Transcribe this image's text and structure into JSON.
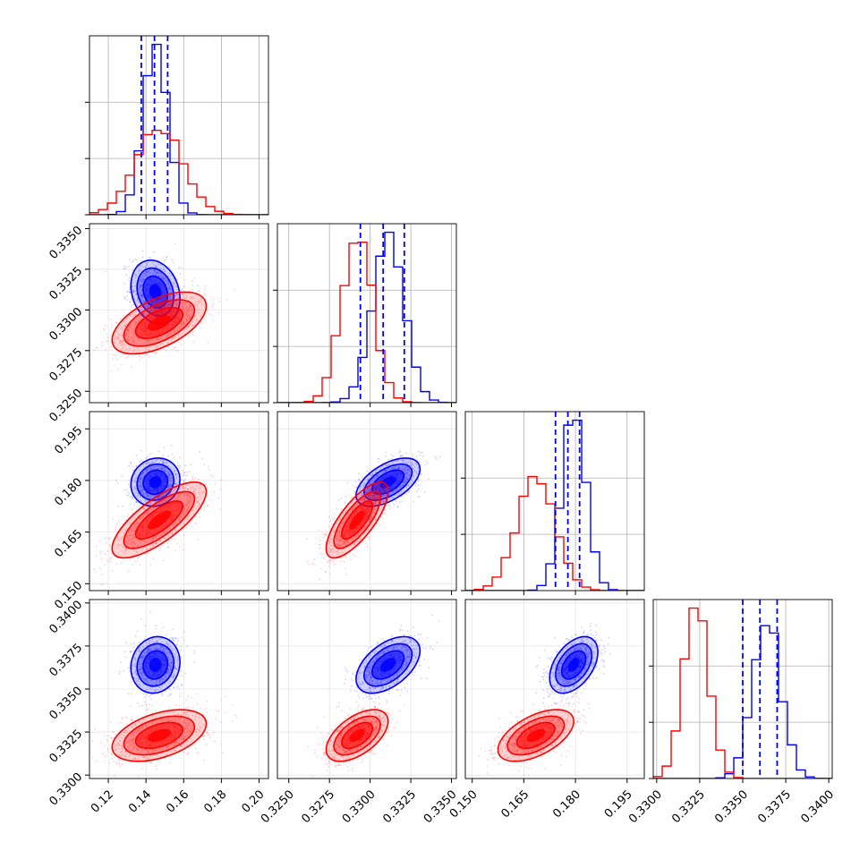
{
  "chart_data": {
    "type": "corner",
    "title": "",
    "parameters": [
      {
        "index": 0,
        "xlim": [
          0.11,
          0.205
        ],
        "ticks": [
          0.12,
          0.14,
          0.16,
          0.18,
          0.2
        ],
        "tick_labels": [
          "0.12",
          "0.14",
          "0.16",
          "0.18",
          "0.20"
        ]
      },
      {
        "index": 1,
        "xlim": [
          0.3243,
          0.3353
        ],
        "ticks": [
          0.325,
          0.3275,
          0.33,
          0.3325,
          0.335
        ],
        "tick_labels": [
          "0.3250",
          "0.3275",
          "0.3300",
          "0.3325",
          "0.3350"
        ]
      },
      {
        "index": 2,
        "xlim": [
          0.148,
          0.2
        ],
        "ticks": [
          0.15,
          0.165,
          0.18,
          0.195
        ],
        "tick_labels": [
          "0.150",
          "0.165",
          "0.180",
          "0.195"
        ]
      },
      {
        "index": 3,
        "xlim": [
          0.3298,
          0.3402
        ],
        "ticks": [
          0.33,
          0.3325,
          0.335,
          0.3375,
          0.34
        ],
        "tick_labels": [
          "0.3300",
          "0.3325",
          "0.3350",
          "0.3375",
          "0.3400"
        ]
      }
    ],
    "grid": true,
    "series": [
      {
        "color": "#0000ff",
        "means": [
          0.145,
          0.3311,
          0.1795,
          0.3364
        ],
        "stds": [
          0.0065,
          0.00098,
          0.0035,
          0.00082
        ],
        "quantiles": [
          [
            0.1375,
            0.1445,
            0.1515
          ],
          [
            0.3294,
            0.3308,
            0.3321
          ],
          [
            0.1742,
            0.1778,
            0.1812
          ],
          [
            0.335,
            0.336,
            0.337
          ]
        ],
        "correlations": [
          [
            0,
            1,
            -0.2
          ],
          [
            0,
            2,
            0.1
          ],
          [
            0,
            3,
            0.1
          ],
          [
            1,
            2,
            0.55
          ],
          [
            1,
            3,
            0.5
          ],
          [
            2,
            3,
            0.45
          ]
        ]
      },
      {
        "color": "#ff0000",
        "means": [
          0.147,
          0.3292,
          0.1685,
          0.3323
        ],
        "stds": [
          0.0125,
          0.00095,
          0.0055,
          0.00075
        ],
        "quantiles": null,
        "correlations": [
          [
            0,
            1,
            0.55
          ],
          [
            0,
            2,
            0.75
          ],
          [
            0,
            3,
            0.45
          ],
          [
            1,
            2,
            0.75
          ],
          [
            1,
            3,
            0.55
          ],
          [
            2,
            3,
            0.55
          ]
        ]
      }
    ]
  }
}
